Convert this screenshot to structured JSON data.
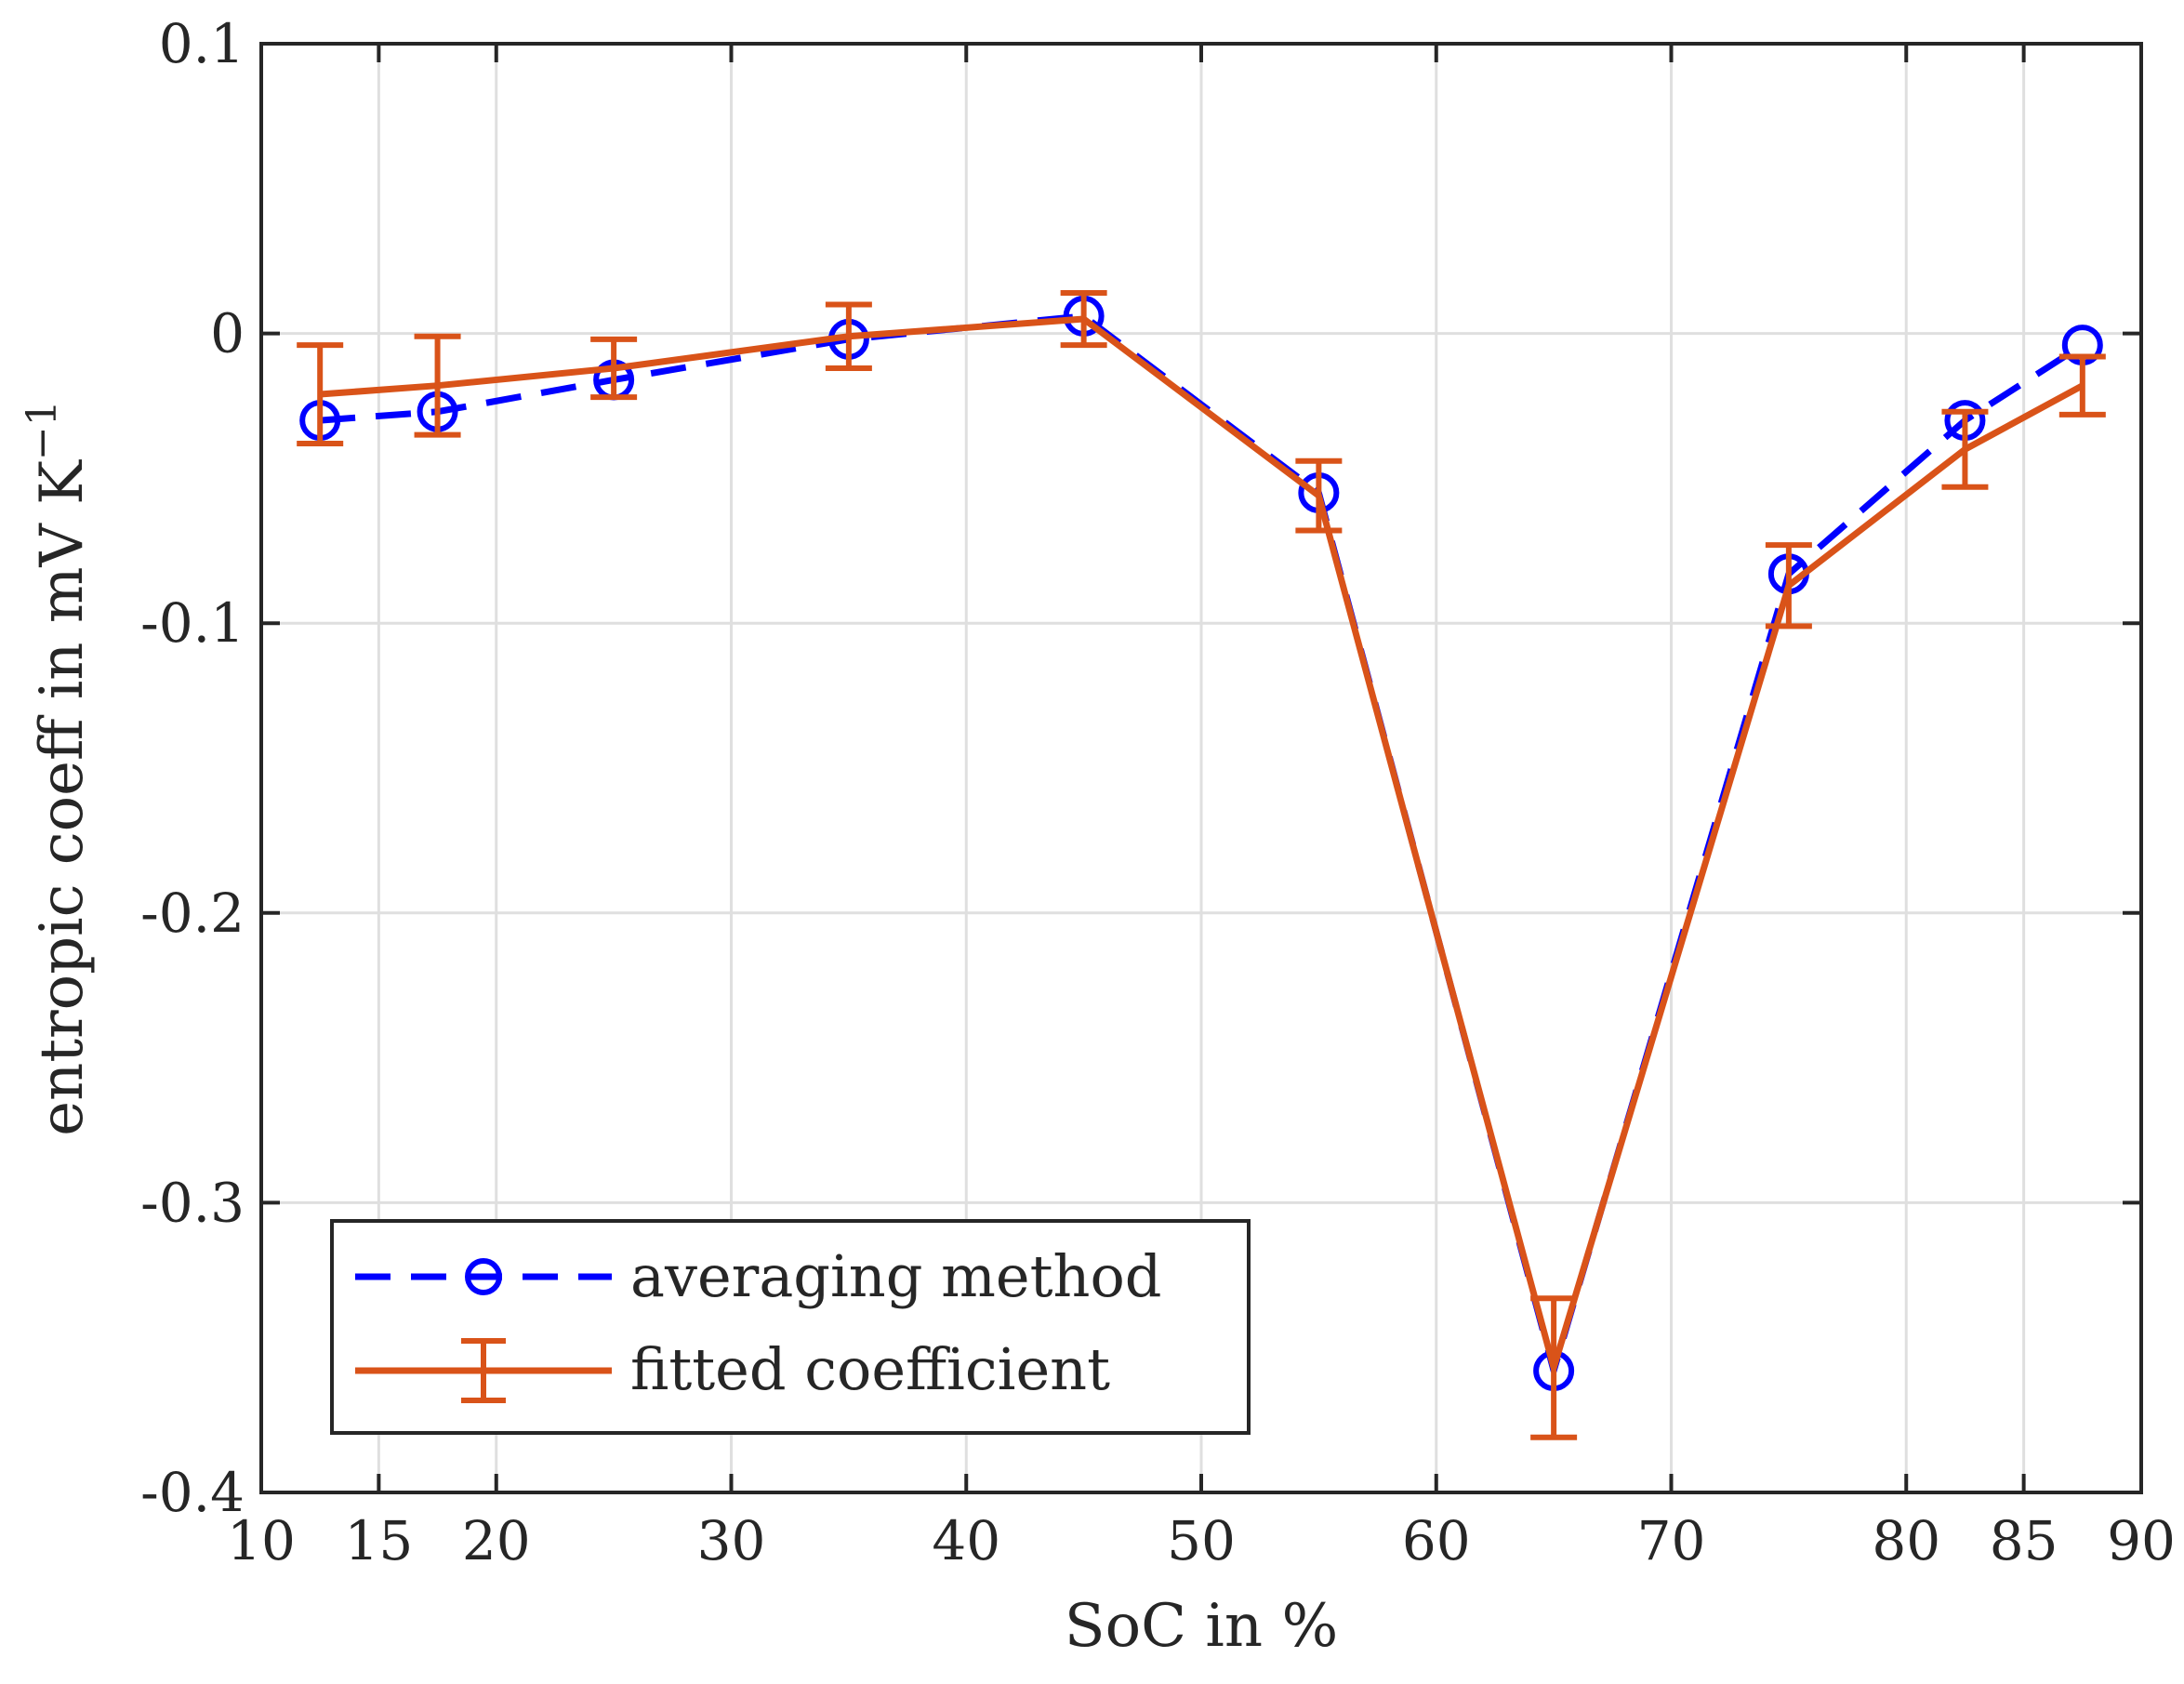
{
  "chart_data": {
    "type": "line",
    "title": "",
    "xlabel": "SoC in %",
    "ylabel_text": "entropic coeff in mV K",
    "ylabel_exponent": "−1",
    "xlim": [
      10,
      90
    ],
    "ylim": [
      -0.4,
      0.1
    ],
    "xticks": [
      10,
      15,
      20,
      30,
      40,
      50,
      60,
      70,
      80,
      85,
      90
    ],
    "xtick_labels": [
      "10",
      "15",
      "20",
      "30",
      "40",
      "50",
      "60",
      "70",
      "80",
      "85",
      "90"
    ],
    "yticks": [
      0.1,
      0,
      -0.1,
      -0.2,
      -0.3,
      -0.4
    ],
    "ytick_labels": [
      "0.1",
      "0",
      "-0.1",
      "-0.2",
      "-0.3",
      "-0.4"
    ],
    "grid": true,
    "legend_position": "bottom-left",
    "series": [
      {
        "name": "averaging method",
        "style": "dashed-circle",
        "color": "#0000ff",
        "x": [
          12.5,
          17.5,
          25,
          35,
          45,
          55,
          65,
          75,
          82.5,
          87.5
        ],
        "y": [
          -0.03,
          -0.027,
          -0.016,
          -0.002,
          0.006,
          -0.055,
          -0.358,
          -0.083,
          -0.03,
          -0.004
        ]
      },
      {
        "name": "fitted coefficient",
        "style": "solid-errorbar",
        "color": "#d95319",
        "x": [
          12.5,
          17.5,
          25,
          35,
          45,
          55,
          65,
          75,
          82.5,
          87.5
        ],
        "y": [
          -0.021,
          -0.018,
          -0.012,
          -0.001,
          0.005,
          -0.056,
          -0.357,
          -0.087,
          -0.04,
          -0.018
        ],
        "err": [
          0.017,
          0.017,
          0.01,
          0.011,
          0.009,
          0.012,
          0.024,
          0.014,
          0.013,
          0.01
        ]
      }
    ]
  }
}
